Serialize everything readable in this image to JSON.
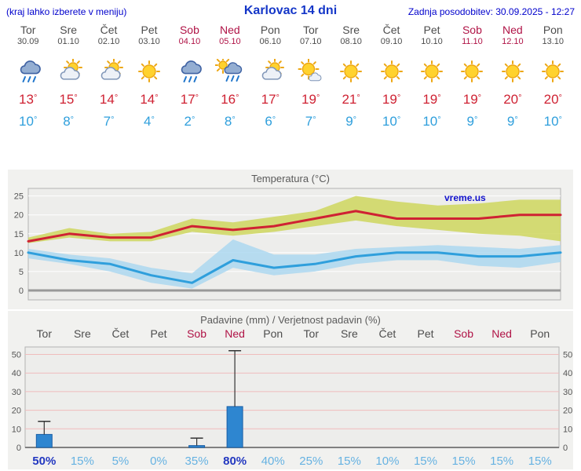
{
  "header": {
    "left_note": "(kraj lahko izberete v meniju)",
    "title": "Karlovac 14 dni",
    "updated": "Zadnja posodobitev: 30.09.2025 - 12:27"
  },
  "temp_unit": "°",
  "colors": {
    "accent_blue": "#0000cc",
    "title_blue": "#1436c8",
    "weekday_text": "#4d4d4d",
    "weekend_text": "#b01346",
    "temp_max_red": "#cf2233",
    "temp_min_blue": "#2f9fdc",
    "band_yellow": "#ccd455",
    "band_blue": "#a8d6f0",
    "bar_blue": "#2e86d0",
    "prob_normal": "#66b2e2",
    "prob_strong": "#2338c0",
    "panel_bg": "#f1f1ef",
    "grid_pink": "#f0bcbc"
  },
  "days": [
    {
      "name": "Tor",
      "date": "30.09",
      "weekend": false,
      "icon": "rain",
      "tmax": 13,
      "tmin": 10
    },
    {
      "name": "Sre",
      "date": "01.10",
      "weekend": false,
      "icon": "partly-cloudy",
      "tmax": 15,
      "tmin": 8
    },
    {
      "name": "Čet",
      "date": "02.10",
      "weekend": false,
      "icon": "partly-cloudy",
      "tmax": 14,
      "tmin": 7
    },
    {
      "name": "Pet",
      "date": "03.10",
      "weekend": false,
      "icon": "sunny",
      "tmax": 14,
      "tmin": 4
    },
    {
      "name": "Sob",
      "date": "04.10",
      "weekend": true,
      "icon": "rain",
      "tmax": 17,
      "tmin": 2
    },
    {
      "name": "Ned",
      "date": "05.10",
      "weekend": true,
      "icon": "sun-rain",
      "tmax": 16,
      "tmin": 8
    },
    {
      "name": "Pon",
      "date": "06.10",
      "weekend": false,
      "icon": "partly-cloudy",
      "tmax": 17,
      "tmin": 6
    },
    {
      "name": "Tor",
      "date": "07.10",
      "weekend": false,
      "icon": "mostly-sunny",
      "tmax": 19,
      "tmin": 7
    },
    {
      "name": "Sre",
      "date": "08.10",
      "weekend": false,
      "icon": "sunny",
      "tmax": 21,
      "tmin": 9
    },
    {
      "name": "Čet",
      "date": "09.10",
      "weekend": false,
      "icon": "sunny",
      "tmax": 19,
      "tmin": 10
    },
    {
      "name": "Pet",
      "date": "10.10",
      "weekend": false,
      "icon": "sunny",
      "tmax": 19,
      "tmin": 10
    },
    {
      "name": "Sob",
      "date": "11.10",
      "weekend": true,
      "icon": "sunny",
      "tmax": 19,
      "tmin": 9
    },
    {
      "name": "Ned",
      "date": "12.10",
      "weekend": true,
      "icon": "sunny",
      "tmax": 20,
      "tmin": 9
    },
    {
      "name": "Pon",
      "date": "13.10",
      "weekend": false,
      "icon": "sunny",
      "tmax": 20,
      "tmin": 10
    }
  ],
  "chart_data": [
    {
      "type": "line",
      "title": "Temperatura (°C)",
      "watermark": "vreme.us",
      "categories": [
        "Tor",
        "Sre",
        "Čet",
        "Pet",
        "Sob",
        "Ned",
        "Pon",
        "Tor",
        "Sre",
        "Čet",
        "Pet",
        "Sob",
        "Ned",
        "Pon"
      ],
      "yticks": [
        0,
        5,
        10,
        15,
        20,
        25
      ],
      "ylim": [
        -2.5,
        27
      ],
      "grid": true,
      "series": [
        {
          "name": "max-temperature",
          "color": "#cf2233",
          "band_color": "#ccd455",
          "values": [
            13,
            15,
            14,
            14,
            17,
            16,
            17,
            19,
            21,
            19,
            19,
            19,
            20,
            20
          ],
          "band_upper": [
            14,
            16.5,
            15,
            15.5,
            19,
            18,
            19.5,
            21,
            25,
            23.5,
            22.5,
            23,
            24,
            24
          ],
          "band_lower": [
            12.5,
            14,
            13,
            13,
            15.5,
            14.5,
            15.5,
            17,
            18.5,
            17,
            16,
            15,
            14.5,
            13
          ]
        },
        {
          "name": "min-temperature",
          "color": "#2f9fdc",
          "band_color": "#a8d6f0",
          "values": [
            10,
            8,
            7,
            4,
            2,
            8,
            6,
            7,
            9,
            10,
            10,
            9,
            9,
            10
          ],
          "band_upper": [
            11,
            9.5,
            8.5,
            6,
            4.5,
            13.5,
            9.5,
            9.5,
            11,
            11.5,
            12,
            11.5,
            11,
            12
          ],
          "band_lower": [
            8.5,
            7,
            5,
            2,
            0.5,
            6,
            4,
            5,
            7,
            8,
            8,
            6.5,
            6,
            7.5
          ]
        }
      ]
    },
    {
      "type": "bar",
      "title": "Padavine (mm) / Verjetnost padavin (%)",
      "categories": [
        "Tor",
        "Sre",
        "Čet",
        "Pet",
        "Sob",
        "Ned",
        "Pon",
        "Tor",
        "Sre",
        "Čet",
        "Pet",
        "Sob",
        "Ned",
        "Pon"
      ],
      "values": [
        7,
        0,
        0,
        0,
        1,
        22,
        0,
        0,
        0,
        0,
        0,
        0,
        0,
        0
      ],
      "whiskers": [
        14,
        0,
        0,
        0,
        5,
        52,
        0,
        0,
        0,
        0,
        0,
        0,
        0,
        0
      ],
      "probabilities": [
        "50%",
        "15%",
        "5%",
        "0%",
        "35%",
        "80%",
        "40%",
        "25%",
        "15%",
        "10%",
        "15%",
        "15%",
        "15%",
        "15%"
      ],
      "prob_strong": [
        true,
        false,
        false,
        false,
        false,
        true,
        false,
        false,
        false,
        false,
        false,
        false,
        false,
        false
      ],
      "yticks": [
        0,
        10,
        20,
        30,
        40,
        50
      ],
      "ylim": [
        0,
        54
      ],
      "bar_color": "#2e86d0",
      "bar_edge": "#1b5fa6"
    }
  ]
}
